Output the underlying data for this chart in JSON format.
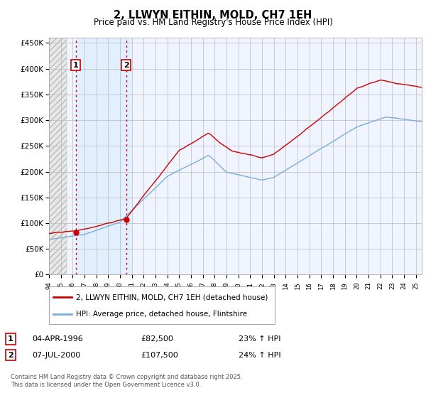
{
  "title": "2, LLWYN EITHIN, MOLD, CH7 1EH",
  "subtitle": "Price paid vs. HM Land Registry's House Price Index (HPI)",
  "ylim": [
    0,
    460000
  ],
  "xlim_start": 1994.0,
  "xlim_end": 2025.5,
  "yticks": [
    0,
    50000,
    100000,
    150000,
    200000,
    250000,
    300000,
    350000,
    400000,
    450000
  ],
  "ytick_labels": [
    "£0",
    "£50K",
    "£100K",
    "£150K",
    "£200K",
    "£250K",
    "£300K",
    "£350K",
    "£400K",
    "£450K"
  ],
  "sale1": {
    "date_year": 1996.27,
    "price": 82500,
    "label": "1",
    "date_str": "04-APR-1996",
    "pct": "23%"
  },
  "sale2": {
    "date_year": 2000.52,
    "price": 107500,
    "label": "2",
    "date_str": "07-JUL-2000",
    "pct": "24%"
  },
  "hpi_line_color": "#7aaddb",
  "price_line_color": "#cc0000",
  "sale_dot_color": "#cc0000",
  "vline_color": "#cc0000",
  "legend1_label": "2, LLWYN EITHIN, MOLD, CH7 1EH (detached house)",
  "legend2_label": "HPI: Average price, detached house, Flintshire",
  "footer": "Contains HM Land Registry data © Crown copyright and database right 2025.\nThis data is licensed under the Open Government Licence v3.0.",
  "hatch_end": 1995.5,
  "sale2_end": 2001.0,
  "background_plot_color": "#ddeeff",
  "grid_color": "#bbbbbb"
}
